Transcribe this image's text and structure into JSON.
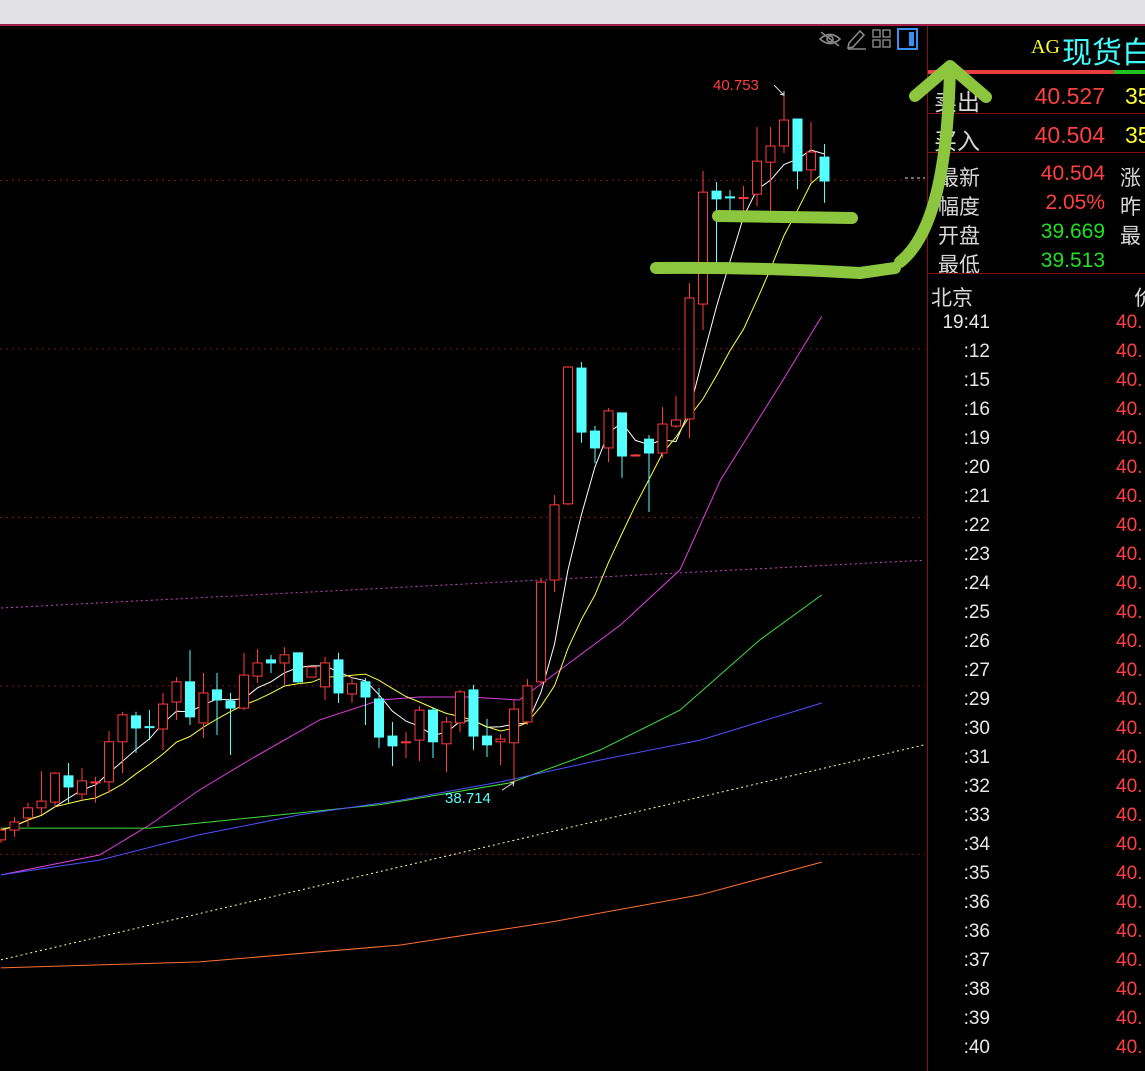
{
  "colors": {
    "up": "#ff3b3b",
    "down": "#54ffff",
    "grid": "#7a1a1a",
    "annotation": "#8cc63f",
    "high_label": "#ff4040",
    "low_label": "#54ffff"
  },
  "toolbar": {
    "icons": [
      "eye-slash-icon",
      "pencil-icon",
      "grid-icon",
      "panel-icon"
    ]
  },
  "chart_data": {
    "type": "candlestick",
    "ylim": [
      37.857,
      40.961
    ],
    "grid": true,
    "grid_levels": [
      40.5,
      40.0,
      39.5,
      39.0,
      38.5
    ],
    "last_price": 40.504,
    "high_label": "40.753",
    "low_label": "38.714",
    "high_index": 58,
    "low_index": 38,
    "candles_ohlc": [
      [
        38.543,
        38.578,
        38.534,
        38.572
      ],
      [
        38.572,
        38.611,
        38.552,
        38.596
      ],
      [
        38.608,
        38.653,
        38.581,
        38.638
      ],
      [
        38.638,
        38.747,
        38.617,
        38.658
      ],
      [
        38.655,
        38.744,
        38.641,
        38.741
      ],
      [
        38.733,
        38.771,
        38.653,
        38.7
      ],
      [
        38.679,
        38.756,
        38.661,
        38.718
      ],
      [
        38.713,
        38.73,
        38.653,
        38.715
      ],
      [
        38.715,
        38.866,
        38.682,
        38.834
      ],
      [
        38.834,
        38.923,
        38.741,
        38.914
      ],
      [
        38.911,
        38.923,
        38.801,
        38.875
      ],
      [
        38.879,
        38.928,
        38.839,
        38.876
      ],
      [
        38.872,
        38.979,
        38.81,
        38.946
      ],
      [
        38.952,
        39.026,
        38.899,
        39.012
      ],
      [
        39.012,
        39.106,
        38.884,
        38.908
      ],
      [
        38.89,
        39.038,
        38.845,
        38.979
      ],
      [
        38.988,
        39.038,
        38.854,
        38.958
      ],
      [
        38.955,
        38.979,
        38.795,
        38.934
      ],
      [
        38.934,
        39.098,
        38.928,
        39.032
      ],
      [
        39.029,
        39.109,
        39.009,
        39.068
      ],
      [
        39.077,
        39.092,
        39.038,
        39.068
      ],
      [
        39.068,
        39.115,
        39.003,
        39.092
      ],
      [
        39.098,
        39.098,
        39.009,
        39.012
      ],
      [
        39.026,
        39.056,
        39.026,
        39.056
      ],
      [
        38.997,
        39.086,
        38.958,
        39.068
      ],
      [
        39.077,
        39.098,
        38.949,
        38.979
      ],
      [
        38.976,
        39.026,
        38.949,
        39.006
      ],
      [
        39.012,
        39.023,
        38.884,
        38.967
      ],
      [
        38.961,
        38.994,
        38.816,
        38.848
      ],
      [
        38.851,
        38.893,
        38.762,
        38.822
      ],
      [
        38.831,
        38.863,
        38.786,
        38.834
      ],
      [
        38.839,
        38.94,
        38.777,
        38.928
      ],
      [
        38.928,
        38.937,
        38.786,
        38.834
      ],
      [
        38.828,
        38.908,
        38.744,
        38.893
      ],
      [
        38.89,
        38.988,
        38.863,
        38.982
      ],
      [
        38.988,
        39.003,
        38.81,
        38.851
      ],
      [
        38.851,
        38.902,
        38.789,
        38.825
      ],
      [
        38.834,
        38.857,
        38.765,
        38.842
      ],
      [
        38.831,
        38.958,
        38.714,
        38.931
      ],
      [
        38.893,
        39.02,
        38.884,
        39.0
      ],
      [
        39.012,
        39.32,
        39.006,
        39.308
      ],
      [
        39.314,
        39.566,
        39.279,
        39.537
      ],
      [
        39.54,
        39.949,
        39.537,
        39.946
      ],
      [
        39.943,
        39.961,
        39.721,
        39.753
      ],
      [
        39.756,
        39.771,
        39.661,
        39.706
      ],
      [
        39.706,
        39.824,
        39.664,
        39.816
      ],
      [
        39.81,
        39.81,
        39.617,
        39.682
      ],
      [
        39.685,
        39.688,
        39.682,
        39.685
      ],
      [
        39.732,
        39.744,
        39.516,
        39.691
      ],
      [
        39.691,
        39.827,
        39.676,
        39.777
      ],
      [
        39.771,
        39.86,
        39.765,
        39.789
      ],
      [
        39.792,
        40.195,
        39.735,
        40.151
      ],
      [
        40.133,
        40.528,
        40.056,
        40.465
      ],
      [
        40.468,
        40.495,
        40.255,
        40.445
      ],
      [
        40.451,
        40.471,
        40.403,
        40.448
      ],
      [
        40.446,
        40.483,
        40.403,
        40.449
      ],
      [
        40.459,
        40.658,
        40.424,
        40.557
      ],
      [
        40.554,
        40.658,
        40.403,
        40.602
      ],
      [
        40.602,
        40.753,
        40.581,
        40.679
      ],
      [
        40.682,
        40.682,
        40.474,
        40.528
      ],
      [
        40.531,
        40.673,
        40.495,
        40.584
      ],
      [
        40.569,
        40.608,
        40.433,
        40.498
      ]
    ],
    "computed_ma": [
      {
        "period": 5,
        "color": "#ffffff"
      },
      {
        "period": 10,
        "color": "#ffff40"
      }
    ],
    "indicator_lines": [
      {
        "color": "#e040e0",
        "points": [
          [
            0,
            38.439
          ],
          [
            7.3,
            38.498
          ],
          [
            11,
            38.587
          ],
          [
            14.7,
            38.691
          ],
          [
            18.4,
            38.78
          ],
          [
            23.6,
            38.899
          ],
          [
            28.1,
            38.958
          ],
          [
            31,
            38.967
          ],
          [
            34.7,
            38.967
          ],
          [
            38.4,
            38.958
          ],
          [
            41.4,
            39.047
          ],
          [
            45.9,
            39.181
          ],
          [
            50.3,
            39.344
          ],
          [
            53.3,
            39.611
          ],
          [
            57.7,
            39.893
          ],
          [
            60.8,
            40.097
          ]
        ]
      },
      {
        "color": "#40e040",
        "points": [
          [
            0,
            38.578
          ],
          [
            11,
            38.578
          ],
          [
            28,
            38.647
          ],
          [
            37.7,
            38.712
          ],
          [
            44.4,
            38.81
          ],
          [
            50.3,
            38.928
          ],
          [
            56.2,
            39.136
          ],
          [
            60.8,
            39.27
          ]
        ]
      },
      {
        "color": "#5050ff",
        "points": [
          [
            0,
            38.439
          ],
          [
            7.3,
            38.483
          ],
          [
            14.7,
            38.558
          ],
          [
            22.1,
            38.617
          ],
          [
            29.6,
            38.661
          ],
          [
            37,
            38.715
          ],
          [
            44.4,
            38.78
          ],
          [
            51.8,
            38.839
          ],
          [
            60.8,
            38.949
          ]
        ]
      },
      {
        "color": "#ff7030",
        "points": [
          [
            0,
            38.163
          ],
          [
            14.7,
            38.181
          ],
          [
            29.6,
            38.231
          ],
          [
            40.7,
            38.299
          ],
          [
            51.8,
            38.38
          ],
          [
            60.8,
            38.477
          ]
        ]
      },
      {
        "color": "#d040d0",
        "dashed": true,
        "points": [
          [
            0,
            39.231
          ],
          [
            68.4,
            39.373
          ]
        ]
      },
      {
        "color": "#ffffa0",
        "dashed": true,
        "points": [
          [
            0,
            38.187
          ],
          [
            68.4,
            38.825
          ]
        ]
      }
    ]
  },
  "quote_panel": {
    "symbol_code": "AG",
    "symbol_name": "现货白",
    "ask": {
      "label": "卖出",
      "price": "40.527",
      "volume": "35"
    },
    "bid": {
      "label": "买入",
      "price": "40.504",
      "volume": "35"
    },
    "stats": [
      {
        "label": "最新",
        "value": "40.504",
        "color": "red",
        "right_label": "涨"
      },
      {
        "label": "幅度",
        "value": "2.05%",
        "color": "red",
        "right_label": "昨"
      },
      {
        "label": "开盘",
        "value": "39.669",
        "color": "green",
        "right_label": "最"
      },
      {
        "label": "最低",
        "value": "39.513",
        "color": "green",
        "right_label": ""
      }
    ],
    "ticks_header": {
      "time_label": "北京",
      "price_label": "价"
    },
    "ticks": [
      {
        "time": "19:41",
        "price": "40."
      },
      {
        "time": ":12",
        "price": "40."
      },
      {
        "time": ":15",
        "price": "40."
      },
      {
        "time": ":16",
        "price": "40."
      },
      {
        "time": ":19",
        "price": "40."
      },
      {
        "time": ":20",
        "price": "40."
      },
      {
        "time": ":21",
        "price": "40."
      },
      {
        "time": ":22",
        "price": "40."
      },
      {
        "time": ":23",
        "price": "40."
      },
      {
        "time": ":24",
        "price": "40."
      },
      {
        "time": ":25",
        "price": "40."
      },
      {
        "time": ":26",
        "price": "40."
      },
      {
        "time": ":27",
        "price": "40."
      },
      {
        "time": ":29",
        "price": "40."
      },
      {
        "time": ":30",
        "price": "40."
      },
      {
        "time": ":31",
        "price": "40."
      },
      {
        "time": ":32",
        "price": "40."
      },
      {
        "time": ":33",
        "price": "40."
      },
      {
        "time": ":34",
        "price": "40."
      },
      {
        "time": ":35",
        "price": "40."
      },
      {
        "time": ":36",
        "price": "40."
      },
      {
        "time": ":36",
        "price": "40."
      },
      {
        "time": ":37",
        "price": "40."
      },
      {
        "time": ":38",
        "price": "40."
      },
      {
        "time": ":39",
        "price": "40."
      },
      {
        "time": ":40",
        "price": "40."
      }
    ]
  }
}
